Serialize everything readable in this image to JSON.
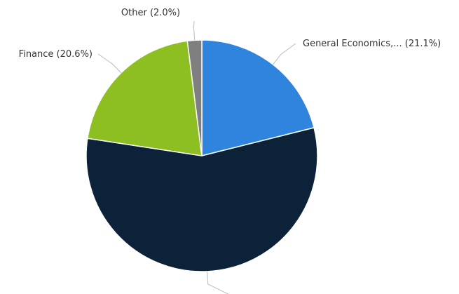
{
  "chart_data": {
    "type": "pie",
    "categories": [
      "General Economics,...",
      null,
      "Finance",
      "Other"
    ],
    "values": [
      21.1,
      56.3,
      20.6,
      2.0
    ],
    "value_labels": [
      "(21.1%)",
      null,
      "(20.6%)",
      "(2.0%)"
    ],
    "colors": [
      "#2f84dd",
      "#0c2239",
      "#8dbf22",
      "#7f7f7f"
    ]
  }
}
